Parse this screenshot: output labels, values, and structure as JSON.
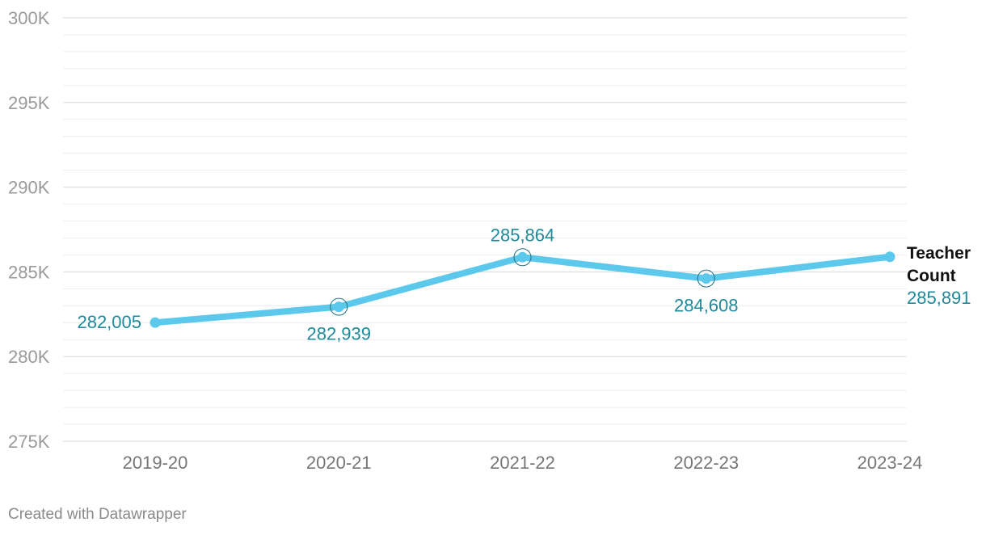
{
  "chart_data": {
    "type": "line",
    "categories": [
      "2019-20",
      "2020-21",
      "2021-22",
      "2022-23",
      "2023-24"
    ],
    "series": [
      {
        "name_lines": [
          "Teacher",
          "Count"
        ],
        "values": [
          282005,
          282939,
          285864,
          284608,
          285891
        ],
        "value_labels": [
          "282,005",
          "282,939",
          "285,864",
          "284,608",
          "285,891"
        ]
      }
    ],
    "ylim": [
      275000,
      300000
    ],
    "y_ticks": [
      300000,
      295000,
      290000,
      285000,
      280000,
      275000
    ],
    "y_tick_labels": [
      "300K",
      "295K",
      "290K",
      "285K",
      "280K",
      "275K"
    ],
    "grid": true,
    "line_color": "#5bc8ec",
    "label_color": "#1f8a99"
  },
  "footer": {
    "credit": "Created with Datawrapper"
  }
}
